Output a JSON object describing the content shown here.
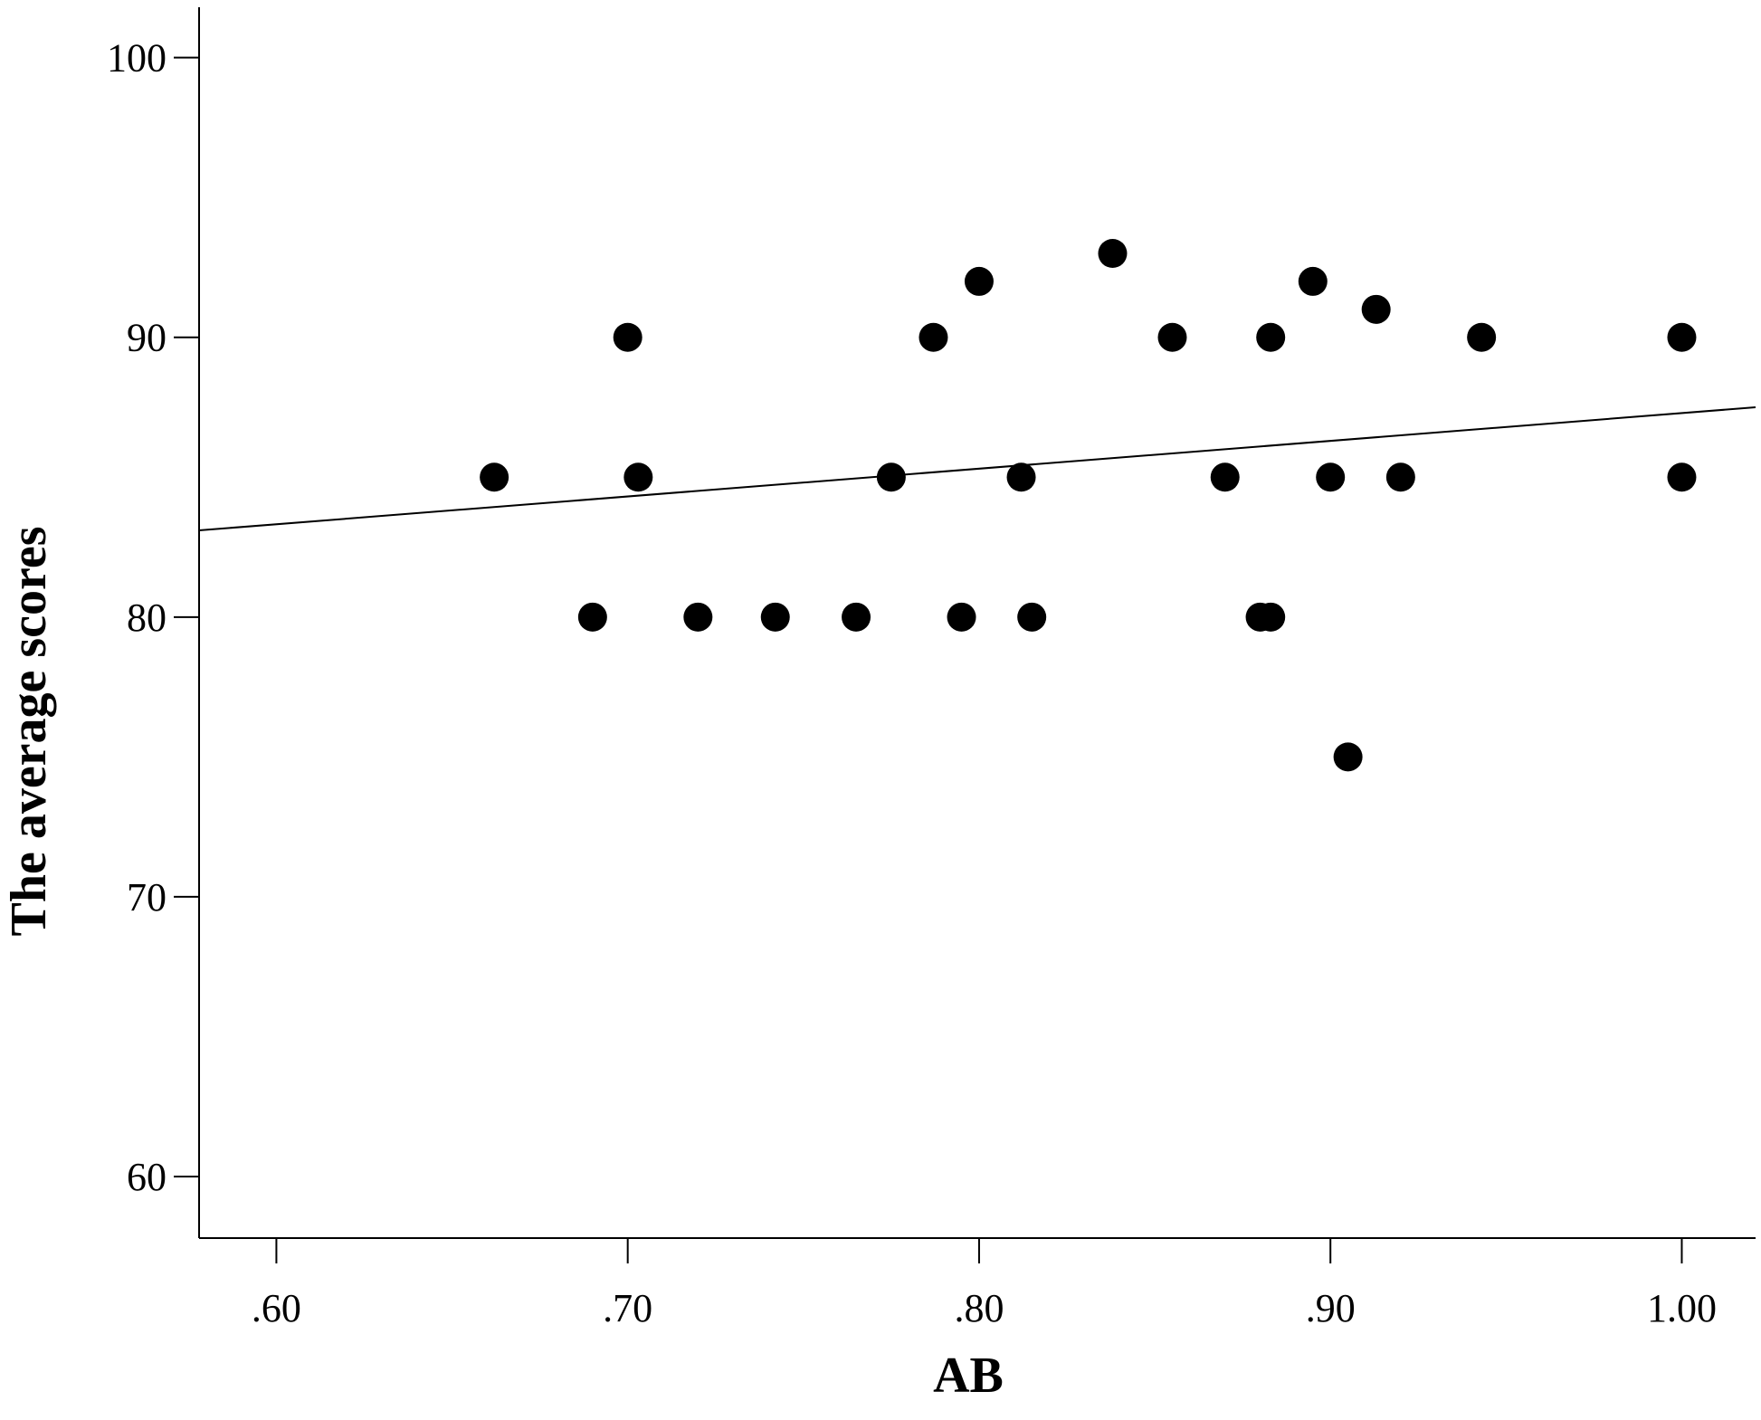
{
  "chart_data": {
    "type": "scatter",
    "title": "",
    "xlabel": "AB",
    "ylabel": "The average scores",
    "xlim": [
      0.578,
      1.021
    ],
    "ylim": [
      57.8,
      101.8
    ],
    "x_ticks": [
      0.6,
      0.7,
      0.8,
      0.9,
      1.0
    ],
    "x_tick_labels": [
      ".60",
      ".70",
      ".80",
      ".90",
      "1.00"
    ],
    "y_ticks": [
      60,
      70,
      80,
      90,
      100
    ],
    "y_tick_labels": [
      "60",
      "70",
      "80",
      "90",
      "100"
    ],
    "grid": false,
    "legend": "none",
    "marker_color": "#000000",
    "series": [
      {
        "points": [
          {
            "x": 0.662,
            "y": 85
          },
          {
            "x": 0.69,
            "y": 80
          },
          {
            "x": 0.7,
            "y": 90
          },
          {
            "x": 0.703,
            "y": 85
          },
          {
            "x": 0.72,
            "y": 80
          },
          {
            "x": 0.742,
            "y": 80
          },
          {
            "x": 0.765,
            "y": 80
          },
          {
            "x": 0.775,
            "y": 85
          },
          {
            "x": 0.787,
            "y": 90
          },
          {
            "x": 0.795,
            "y": 80
          },
          {
            "x": 0.8,
            "y": 92
          },
          {
            "x": 0.812,
            "y": 85
          },
          {
            "x": 0.815,
            "y": 80
          },
          {
            "x": 0.838,
            "y": 93
          },
          {
            "x": 0.855,
            "y": 90
          },
          {
            "x": 0.87,
            "y": 85
          },
          {
            "x": 0.88,
            "y": 80
          },
          {
            "x": 0.883,
            "y": 80
          },
          {
            "x": 0.883,
            "y": 90
          },
          {
            "x": 0.895,
            "y": 92
          },
          {
            "x": 0.9,
            "y": 85
          },
          {
            "x": 0.905,
            "y": 75
          },
          {
            "x": 0.913,
            "y": 91
          },
          {
            "x": 0.92,
            "y": 85
          },
          {
            "x": 0.943,
            "y": 90
          },
          {
            "x": 1.0,
            "y": 90
          },
          {
            "x": 1.0,
            "y": 85
          }
        ]
      }
    ],
    "fit_line": {
      "x": [
        0.578,
        1.021
      ],
      "y": [
        83.1,
        87.5
      ]
    }
  }
}
